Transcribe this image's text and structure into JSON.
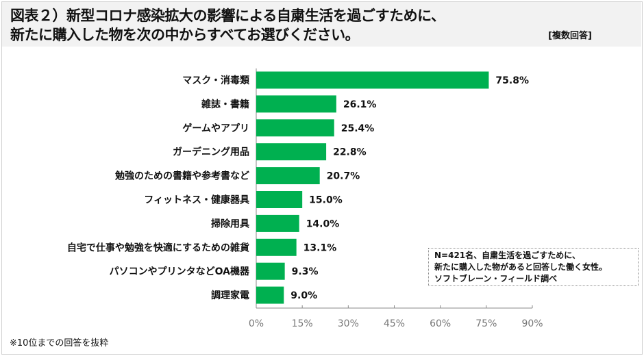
{
  "title_line1": "図表２）新型コロナ感染拡大の影響による自粛生活を過ごすために、",
  "title_line2": "新たに購入した物を次の中からすべてお選びください。",
  "answer_type": "[複数回答]",
  "note": [
    "N=421名、自粛生活を過ごすために、",
    "新たに購入した物があると回答した働く女性。",
    "ソフトブレーン・フィールド調べ"
  ],
  "footnote": "※10位までの回答を抜粋",
  "chart_data": {
    "type": "bar",
    "orientation": "horizontal",
    "categories": [
      "マスク・消毒類",
      "雑誌・書籍",
      "ゲームやアプリ",
      "ガーデニング用品",
      "勉強のための書籍や参考書など",
      "フィットネス・健康器具",
      "掃除用具",
      "自宅で仕事や勉強を快適にするための雑貨",
      "パソコンやプリンタなどOA機器",
      "調理家電"
    ],
    "values": [
      75.8,
      26.1,
      25.4,
      22.8,
      20.7,
      15.0,
      14.0,
      13.1,
      9.3,
      9.0
    ],
    "value_labels": [
      "75.8%",
      "26.1%",
      "25.4%",
      "22.8%",
      "20.7%",
      "15.0%",
      "14.0%",
      "13.1%",
      "9.3%",
      "9.0%"
    ],
    "xlim": [
      0,
      90
    ],
    "ticks": [
      0,
      15,
      30,
      45,
      60,
      75,
      90
    ],
    "tick_labels": [
      "0%",
      "15%",
      "30%",
      "45%",
      "60%",
      "75%",
      "90%"
    ],
    "bar_color": "#00b050",
    "grid": false
  }
}
